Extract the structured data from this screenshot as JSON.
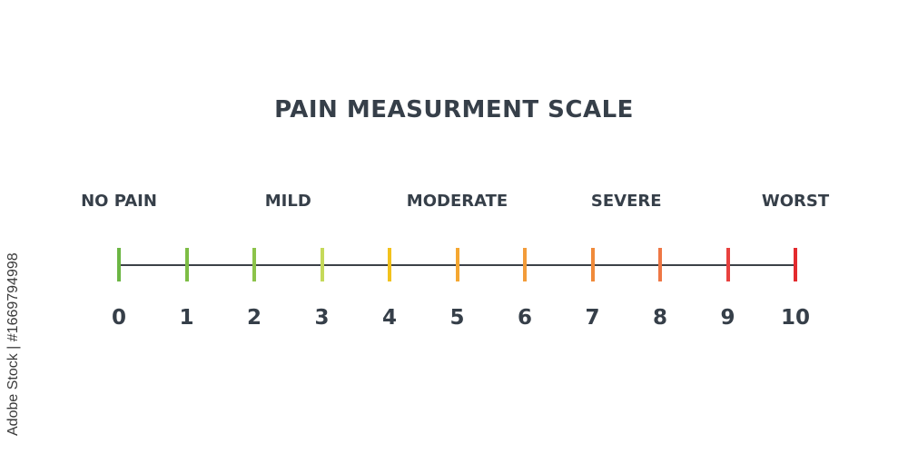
{
  "title": "PAIN MEASURMENT SCALE",
  "categories": [
    {
      "label": "NO PAIN",
      "at": 0
    },
    {
      "label": "MILD",
      "at": 2.5
    },
    {
      "label": "MODERATE",
      "at": 5
    },
    {
      "label": "SEVERE",
      "at": 7.5
    },
    {
      "label": "WORST",
      "at": 10
    }
  ],
  "scale": [
    {
      "value": "0",
      "color": "#6cb644"
    },
    {
      "value": "1",
      "color": "#7dbd45"
    },
    {
      "value": "2",
      "color": "#8cc34a"
    },
    {
      "value": "3",
      "color": "#c5d95a"
    },
    {
      "value": "4",
      "color": "#f2c21c"
    },
    {
      "value": "5",
      "color": "#f5a731"
    },
    {
      "value": "6",
      "color": "#f39c3a"
    },
    {
      "value": "7",
      "color": "#f08a3a"
    },
    {
      "value": "8",
      "color": "#ee7745"
    },
    {
      "value": "9",
      "color": "#e8413f"
    },
    {
      "value": "10",
      "color": "#e32a2e"
    }
  ],
  "watermark": "Adobe Stock | #1669794998"
}
